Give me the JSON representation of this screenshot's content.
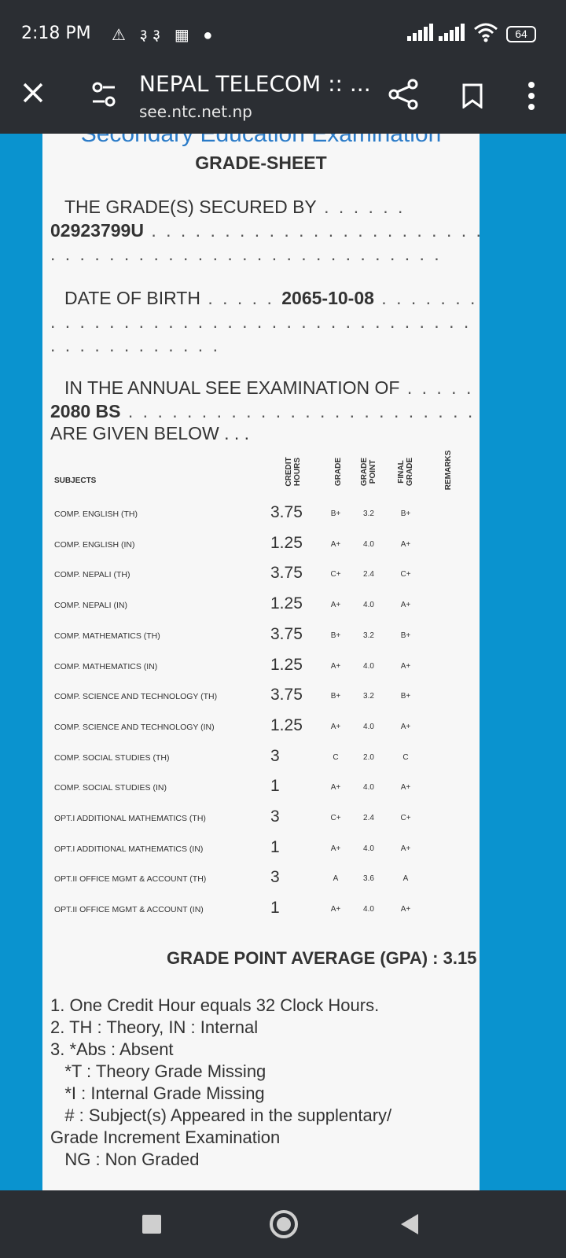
{
  "status_bar": {
    "time": "2:18 PM",
    "icons": "⚠ ३३ ▦ ●",
    "battery": "64"
  },
  "toolbar": {
    "title": "NEPAL TELECOM :: ...",
    "url": "see.ntc.net.np"
  },
  "sheet": {
    "exam_title": "Secondary Education Examination",
    "title": "GRADE-SHEET",
    "secured_by_label": "THE GRADE(S) SECURED BY",
    "symbol_no": "02923799U",
    "dob_label": "DATE OF BIRTH",
    "dob": "2065-10-08",
    "exam_label": "IN THE ANNUAL SEE EXAMINATION OF",
    "exam_year": "2080 BS",
    "given_below": "ARE GIVEN BELOW . . .",
    "headers": {
      "subjects": "SUBJECTS",
      "credit_hours_1": "CREDIT",
      "credit_hours_2": "HOURS",
      "grade": "GRADE",
      "grade_point_1": "GRADE",
      "grade_point_2": "POINT",
      "final_grade_1": "FINAL",
      "final_grade_2": "GRADE",
      "remarks": "REMARKS"
    },
    "rows": [
      {
        "subject": "COMP. ENGLISH (TH)",
        "credit": "3.75",
        "grade": "B+",
        "gp": "3.2",
        "final": "B+"
      },
      {
        "subject": "COMP. ENGLISH (IN)",
        "credit": "1.25",
        "grade": "A+",
        "gp": "4.0",
        "final": "A+"
      },
      {
        "subject": "COMP. NEPALI (TH)",
        "credit": "3.75",
        "grade": "C+",
        "gp": "2.4",
        "final": "C+"
      },
      {
        "subject": "COMP. NEPALI (IN)",
        "credit": "1.25",
        "grade": "A+",
        "gp": "4.0",
        "final": "A+"
      },
      {
        "subject": "COMP. MATHEMATICS (TH)",
        "credit": "3.75",
        "grade": "B+",
        "gp": "3.2",
        "final": "B+"
      },
      {
        "subject": "COMP. MATHEMATICS (IN)",
        "credit": "1.25",
        "grade": "A+",
        "gp": "4.0",
        "final": "A+"
      },
      {
        "subject": "COMP. SCIENCE AND TECHNOLOGY (TH)",
        "credit": "3.75",
        "grade": "B+",
        "gp": "3.2",
        "final": "B+"
      },
      {
        "subject": "COMP. SCIENCE AND TECHNOLOGY (IN)",
        "credit": "1.25",
        "grade": "A+",
        "gp": "4.0",
        "final": "A+"
      },
      {
        "subject": "COMP. SOCIAL STUDIES (TH)",
        "credit": "3",
        "grade": "C",
        "gp": "2.0",
        "final": "C"
      },
      {
        "subject": "COMP. SOCIAL STUDIES (IN)",
        "credit": "1",
        "grade": "A+",
        "gp": "4.0",
        "final": "A+"
      },
      {
        "subject": "OPT.I ADDITIONAL MATHEMATICS (TH)",
        "credit": "3",
        "grade": "C+",
        "gp": "2.4",
        "final": "C+"
      },
      {
        "subject": "OPT.I ADDITIONAL MATHEMATICS (IN)",
        "credit": "1",
        "grade": "A+",
        "gp": "4.0",
        "final": "A+"
      },
      {
        "subject": "OPT.II OFFICE MGMT & ACCOUNT (TH)",
        "credit": "3",
        "grade": "A",
        "gp": "3.6",
        "final": "A"
      },
      {
        "subject": "OPT.II OFFICE MGMT & ACCOUNT (IN)",
        "credit": "1",
        "grade": "A+",
        "gp": "4.0",
        "final": "A+"
      }
    ],
    "gpa": "GRADE POINT AVERAGE (GPA) : 3.15",
    "notes": [
      "1. One Credit Hour equals 32 Clock Hours.",
      "2. TH : Theory, IN : Internal",
      "3. *Abs : Absent",
      "   *T : Theory Grade Missing",
      "   *I : Internal Grade Missing",
      "   # : Subject(s) Appeared in the supplentary/",
      "Grade Increment Examination",
      "   NG : Non Graded"
    ]
  }
}
